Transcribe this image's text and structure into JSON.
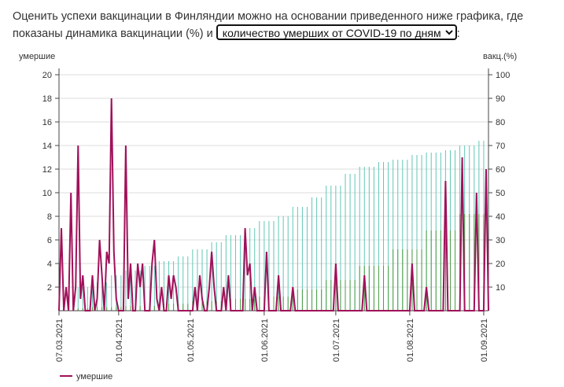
{
  "intro": {
    "text_before": "Оценить успехи вакцинации в Финляндии можно на основании приведенного ниже графика, где показаны динамика вакцинации (%) и",
    "text_after": ":",
    "select_value": "количество умерших от COVID-19 по дням"
  },
  "colors": {
    "deaths": "#a0115a",
    "vacc_one_dose": "#62c6b6",
    "vacc_full": "#4e9e47",
    "grid": "#dddddd",
    "axis": "#444444"
  },
  "chart_data": {
    "type": "bar+line",
    "left_axis_title": "умершие",
    "right_axis_title": "вакц.(%)",
    "left_ylim": [
      0,
      20
    ],
    "left_ticks": [
      "2",
      "4",
      "6",
      "8",
      "10",
      "12",
      "14",
      "16",
      "18",
      "20"
    ],
    "right_ylim": [
      0,
      100
    ],
    "right_ticks": [
      "10",
      "20",
      "30",
      "40",
      "50",
      "60",
      "70",
      "80",
      "90",
      "100"
    ],
    "x_range": [
      "2021-03-07",
      "2021-09-03"
    ],
    "x_tick_labels": [
      "07.03.2021",
      "01.04.2021",
      "01.05.2021",
      "01.06.2021",
      "01.07.2021",
      "01.08.2021",
      "01.09.2021"
    ],
    "grid": true,
    "legend_position": "bottom-left",
    "series": [
      {
        "name": "умершие",
        "kind": "line",
        "axis": "left",
        "points": [
          [
            "2021-03-07",
            0
          ],
          [
            "2021-03-08",
            7
          ],
          [
            "2021-03-09",
            0
          ],
          [
            "2021-03-10",
            2
          ],
          [
            "2021-03-11",
            0
          ],
          [
            "2021-03-12",
            10
          ],
          [
            "2021-03-13",
            0
          ],
          [
            "2021-03-14",
            2
          ],
          [
            "2021-03-15",
            14
          ],
          [
            "2021-03-16",
            1
          ],
          [
            "2021-03-17",
            3
          ],
          [
            "2021-03-18",
            0
          ],
          [
            "2021-03-19",
            0
          ],
          [
            "2021-03-20",
            0
          ],
          [
            "2021-03-21",
            3
          ],
          [
            "2021-03-22",
            0
          ],
          [
            "2021-03-23",
            1
          ],
          [
            "2021-03-24",
            6
          ],
          [
            "2021-03-25",
            3
          ],
          [
            "2021-03-26",
            0
          ],
          [
            "2021-03-27",
            5
          ],
          [
            "2021-03-28",
            4
          ],
          [
            "2021-03-29",
            18
          ],
          [
            "2021-03-30",
            5
          ],
          [
            "2021-03-31",
            1
          ],
          [
            "2021-04-01",
            0
          ],
          [
            "2021-04-02",
            0
          ],
          [
            "2021-04-03",
            0
          ],
          [
            "2021-04-04",
            14
          ],
          [
            "2021-04-05",
            1
          ],
          [
            "2021-04-06",
            4
          ],
          [
            "2021-04-07",
            0
          ],
          [
            "2021-04-08",
            0
          ],
          [
            "2021-04-09",
            4
          ],
          [
            "2021-04-10",
            2
          ],
          [
            "2021-04-11",
            4
          ],
          [
            "2021-04-12",
            0
          ],
          [
            "2021-04-13",
            0
          ],
          [
            "2021-04-14",
            0
          ],
          [
            "2021-04-15",
            4
          ],
          [
            "2021-04-16",
            6
          ],
          [
            "2021-04-17",
            1
          ],
          [
            "2021-04-18",
            0
          ],
          [
            "2021-04-19",
            2
          ],
          [
            "2021-04-20",
            0
          ],
          [
            "2021-04-21",
            0
          ],
          [
            "2021-04-22",
            3
          ],
          [
            "2021-04-23",
            1
          ],
          [
            "2021-04-24",
            3
          ],
          [
            "2021-04-25",
            2
          ],
          [
            "2021-04-26",
            0
          ],
          [
            "2021-04-27",
            0
          ],
          [
            "2021-04-28",
            0
          ],
          [
            "2021-04-29",
            0
          ],
          [
            "2021-04-30",
            0
          ],
          [
            "2021-05-01",
            0
          ],
          [
            "2021-05-02",
            0
          ],
          [
            "2021-05-03",
            2
          ],
          [
            "2021-05-04",
            0
          ],
          [
            "2021-05-05",
            3
          ],
          [
            "2021-05-06",
            1
          ],
          [
            "2021-05-07",
            0
          ],
          [
            "2021-05-08",
            0
          ],
          [
            "2021-05-09",
            2
          ],
          [
            "2021-05-10",
            5
          ],
          [
            "2021-05-11",
            2
          ],
          [
            "2021-05-12",
            0
          ],
          [
            "2021-05-13",
            0
          ],
          [
            "2021-05-14",
            0
          ],
          [
            "2021-05-15",
            2
          ],
          [
            "2021-05-16",
            0
          ],
          [
            "2021-05-17",
            3
          ],
          [
            "2021-05-18",
            0
          ],
          [
            "2021-05-19",
            0
          ],
          [
            "2021-05-20",
            0
          ],
          [
            "2021-05-21",
            0
          ],
          [
            "2021-05-22",
            0
          ],
          [
            "2021-05-23",
            0
          ],
          [
            "2021-05-24",
            7
          ],
          [
            "2021-05-25",
            3
          ],
          [
            "2021-05-26",
            4
          ],
          [
            "2021-05-27",
            0
          ],
          [
            "2021-05-28",
            2
          ],
          [
            "2021-05-29",
            0
          ],
          [
            "2021-05-30",
            0
          ],
          [
            "2021-05-31",
            0
          ],
          [
            "2021-06-01",
            0
          ],
          [
            "2021-06-02",
            5
          ],
          [
            "2021-06-03",
            0
          ],
          [
            "2021-06-04",
            0
          ],
          [
            "2021-06-05",
            0
          ],
          [
            "2021-06-06",
            0
          ],
          [
            "2021-06-07",
            3
          ],
          [
            "2021-06-08",
            0
          ],
          [
            "2021-06-09",
            0
          ],
          [
            "2021-06-10",
            0
          ],
          [
            "2021-06-11",
            0
          ],
          [
            "2021-06-12",
            0
          ],
          [
            "2021-06-13",
            2
          ],
          [
            "2021-06-14",
            0
          ],
          [
            "2021-06-15",
            0
          ],
          [
            "2021-06-16",
            0
          ],
          [
            "2021-06-17",
            0
          ],
          [
            "2021-06-18",
            0
          ],
          [
            "2021-06-19",
            0
          ],
          [
            "2021-06-20",
            0
          ],
          [
            "2021-06-21",
            0
          ],
          [
            "2021-06-22",
            0
          ],
          [
            "2021-06-23",
            0
          ],
          [
            "2021-06-24",
            0
          ],
          [
            "2021-06-25",
            0
          ],
          [
            "2021-06-26",
            0
          ],
          [
            "2021-06-27",
            0
          ],
          [
            "2021-06-28",
            0
          ],
          [
            "2021-06-29",
            0
          ],
          [
            "2021-06-30",
            0
          ],
          [
            "2021-07-01",
            4
          ],
          [
            "2021-07-02",
            0
          ],
          [
            "2021-07-03",
            0
          ],
          [
            "2021-07-04",
            0
          ],
          [
            "2021-07-05",
            0
          ],
          [
            "2021-07-06",
            0
          ],
          [
            "2021-07-07",
            0
          ],
          [
            "2021-07-08",
            0
          ],
          [
            "2021-07-09",
            0
          ],
          [
            "2021-07-10",
            0
          ],
          [
            "2021-07-11",
            0
          ],
          [
            "2021-07-12",
            0
          ],
          [
            "2021-07-13",
            3
          ],
          [
            "2021-07-14",
            0
          ],
          [
            "2021-07-15",
            0
          ],
          [
            "2021-07-16",
            0
          ],
          [
            "2021-07-17",
            0
          ],
          [
            "2021-07-18",
            0
          ],
          [
            "2021-07-19",
            0
          ],
          [
            "2021-07-20",
            0
          ],
          [
            "2021-07-21",
            0
          ],
          [
            "2021-07-22",
            0
          ],
          [
            "2021-07-23",
            0
          ],
          [
            "2021-07-24",
            0
          ],
          [
            "2021-07-25",
            0
          ],
          [
            "2021-07-26",
            0
          ],
          [
            "2021-07-27",
            0
          ],
          [
            "2021-07-28",
            0
          ],
          [
            "2021-07-29",
            0
          ],
          [
            "2021-07-30",
            0
          ],
          [
            "2021-07-31",
            0
          ],
          [
            "2021-08-01",
            0
          ],
          [
            "2021-08-02",
            4
          ],
          [
            "2021-08-03",
            0
          ],
          [
            "2021-08-04",
            0
          ],
          [
            "2021-08-05",
            0
          ],
          [
            "2021-08-06",
            0
          ],
          [
            "2021-08-07",
            0
          ],
          [
            "2021-08-08",
            2
          ],
          [
            "2021-08-09",
            0
          ],
          [
            "2021-08-10",
            0
          ],
          [
            "2021-08-11",
            0
          ],
          [
            "2021-08-12",
            0
          ],
          [
            "2021-08-13",
            0
          ],
          [
            "2021-08-14",
            0
          ],
          [
            "2021-08-15",
            0
          ],
          [
            "2021-08-16",
            11
          ],
          [
            "2021-08-17",
            0
          ],
          [
            "2021-08-18",
            0
          ],
          [
            "2021-08-19",
            0
          ],
          [
            "2021-08-20",
            0
          ],
          [
            "2021-08-21",
            0
          ],
          [
            "2021-08-22",
            0
          ],
          [
            "2021-08-23",
            13
          ],
          [
            "2021-08-24",
            0
          ],
          [
            "2021-08-25",
            0
          ],
          [
            "2021-08-26",
            0
          ],
          [
            "2021-08-27",
            0
          ],
          [
            "2021-08-28",
            0
          ],
          [
            "2021-08-29",
            10
          ],
          [
            "2021-08-30",
            0
          ],
          [
            "2021-08-31",
            0
          ],
          [
            "2021-09-01",
            0
          ],
          [
            "2021-09-02",
            12
          ],
          [
            "2021-09-03",
            0
          ]
        ]
      },
      {
        "kind": "bars",
        "axis": "right",
        "stepwise": true,
        "values_by_date": [
          [
            "2021-03-07",
            7
          ],
          [
            "2021-03-14",
            10
          ],
          [
            "2021-03-21",
            12
          ],
          [
            "2021-03-28",
            15
          ],
          [
            "2021-04-04",
            17
          ],
          [
            "2021-04-11",
            19
          ],
          [
            "2021-04-18",
            21
          ],
          [
            "2021-04-25",
            23
          ],
          [
            "2021-05-02",
            26
          ],
          [
            "2021-05-09",
            29
          ],
          [
            "2021-05-16",
            32
          ],
          [
            "2021-05-23",
            35
          ],
          [
            "2021-05-30",
            38
          ],
          [
            "2021-06-06",
            40
          ],
          [
            "2021-06-13",
            44
          ],
          [
            "2021-06-20",
            48
          ],
          [
            "2021-06-27",
            53
          ],
          [
            "2021-07-04",
            58
          ],
          [
            "2021-07-11",
            61
          ],
          [
            "2021-07-18",
            63
          ],
          [
            "2021-07-25",
            64
          ],
          [
            "2021-08-01",
            66
          ],
          [
            "2021-08-08",
            67
          ],
          [
            "2021-08-15",
            68
          ],
          [
            "2021-08-22",
            70
          ],
          [
            "2021-08-29",
            72
          ],
          [
            "2021-09-03",
            73
          ]
        ]
      },
      {
        "kind": "bars",
        "axis": "right",
        "stepwise": true,
        "values_by_date": [
          [
            "2021-03-07",
            1
          ],
          [
            "2021-03-21",
            1.5
          ],
          [
            "2021-04-04",
            2
          ],
          [
            "2021-04-18",
            3
          ],
          [
            "2021-05-02",
            4
          ],
          [
            "2021-05-16",
            5
          ],
          [
            "2021-05-30",
            6
          ],
          [
            "2021-06-13",
            9
          ],
          [
            "2021-06-27",
            13
          ],
          [
            "2021-07-11",
            19
          ],
          [
            "2021-07-25",
            26
          ],
          [
            "2021-08-08",
            34
          ],
          [
            "2021-08-22",
            41
          ],
          [
            "2021-09-03",
            53
          ]
        ]
      }
    ]
  }
}
